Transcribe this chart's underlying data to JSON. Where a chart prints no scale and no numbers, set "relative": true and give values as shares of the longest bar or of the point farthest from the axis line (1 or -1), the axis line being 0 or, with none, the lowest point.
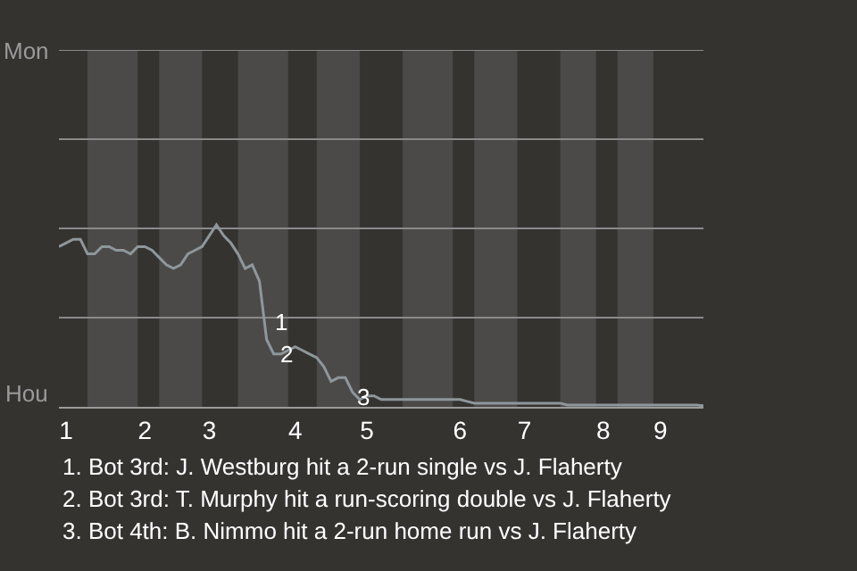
{
  "chart_data": {
    "type": "line",
    "relative": true,
    "categories": [
      null,
      "1",
      null,
      null,
      null,
      null,
      null,
      null,
      null,
      null,
      null,
      null,
      "2",
      null,
      null,
      null,
      null,
      null,
      null,
      null,
      null,
      "3",
      null,
      null,
      null,
      null,
      null,
      null,
      null,
      null,
      null,
      null,
      null,
      "4",
      null,
      null,
      null,
      null,
      null,
      null,
      null,
      null,
      null,
      "5",
      null,
      null,
      null,
      null,
      null,
      null,
      null,
      null,
      null,
      null,
      null,
      null,
      "6",
      null,
      null,
      null,
      null,
      null,
      null,
      null,
      null,
      "7",
      null,
      null,
      null,
      null,
      null,
      null,
      null,
      null,
      null,
      null,
      "8",
      null,
      null,
      null,
      null,
      null,
      null,
      null,
      "9",
      null,
      null,
      null,
      null,
      null,
      null
    ],
    "series": [
      {
        "color": "#8e979b",
        "values": [
          0.88,
          0.9,
          0.92,
          0.92,
          0.84,
          0.84,
          0.88,
          0.88,
          0.86,
          0.86,
          0.84,
          0.88,
          0.88,
          0.86,
          0.82,
          0.78,
          0.76,
          0.78,
          0.84,
          0.86,
          0.88,
          0.94,
          1,
          0.94,
          0.9,
          0.84,
          0.76,
          0.78,
          0.69,
          0.37,
          0.29,
          0.29,
          0.31,
          0.33,
          0.31,
          0.29,
          0.27,
          0.22,
          0.14,
          0.16,
          0.16,
          0.08,
          0.04,
          0.06,
          0.06,
          0.04,
          0.04,
          0.04,
          0.04,
          0.04,
          0.04,
          0.04,
          0.04,
          0.04,
          0.04,
          0.04,
          0.04,
          0.03,
          0.02,
          0.02,
          0.02,
          0.02,
          0.02,
          0.02,
          0.02,
          0.02,
          0.02,
          0.02,
          0.02,
          0.02,
          0.02,
          0.01,
          0.01,
          0.01,
          0.01,
          0.01,
          0.01,
          0.01,
          0.01,
          0.01,
          0.01,
          0.01,
          0.01,
          0.01,
          0.01,
          0.01,
          0.01,
          0.01,
          0.01,
          0.01,
          0.006
        ]
      }
    ],
    "legend": false,
    "ref_lines": [
      {
        "axis": "y",
        "value": 0.49,
        "color": "#8a8a8a"
      },
      {
        "axis": "y",
        "value": 0.98,
        "color": "#8a8a8a"
      },
      {
        "axis": "y",
        "value": 1.47,
        "color": "#8a8a8a"
      },
      {
        "axis": "y",
        "value": 1.96,
        "color": "#8a8a8a"
      }
    ],
    "marker": "none",
    "line_style": "solid",
    "annotations": [
      "Mon",
      "Hou",
      "1",
      "2",
      "3",
      "1. Bot 3rd: J. Westburg hit a 2-run single vs J. Flaherty",
      "2. Bot 3rd: T. Murphy hit a run-scoring double vs J. Flaherty",
      "3. Bot 4th: B. Nimmo hit a 2-run home run vs J. Flaherty"
    ]
  }
}
